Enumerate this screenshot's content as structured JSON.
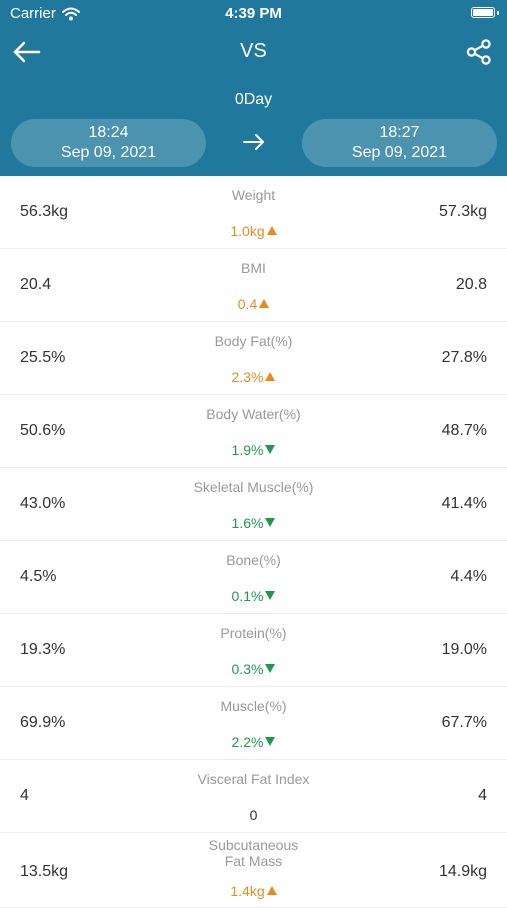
{
  "status_bar": {
    "carrier": "Carrier",
    "time": "4:39 PM",
    "wifi_icon": "wifi-icon",
    "battery_icon": "battery-icon"
  },
  "nav": {
    "title": "VS",
    "back_icon": "arrow-left-icon",
    "share_icon": "share-icon"
  },
  "comparison": {
    "days": "0Day",
    "left": {
      "time": "18:24",
      "date": "Sep 09, 2021"
    },
    "right": {
      "time": "18:27",
      "date": "Sep 09, 2021"
    },
    "arrow_icon": "arrow-right-icon"
  },
  "colors": {
    "header": "#20799d",
    "increase": "#ea8a1c",
    "decrease": "#1f9a4a"
  },
  "metrics": [
    {
      "label": "Weight",
      "left": "56.3kg",
      "right": "57.3kg",
      "delta": "1.0kg",
      "trend": "up"
    },
    {
      "label": "BMI",
      "left": "20.4",
      "right": "20.8",
      "delta": "0.4",
      "trend": "up"
    },
    {
      "label": "Body Fat(%)",
      "left": "25.5%",
      "right": "27.8%",
      "delta": "2.3%",
      "trend": "up"
    },
    {
      "label": "Body Water(%)",
      "left": "50.6%",
      "right": "48.7%",
      "delta": "1.9%",
      "trend": "down"
    },
    {
      "label": "Skeletal Muscle(%)",
      "left": "43.0%",
      "right": "41.4%",
      "delta": "1.6%",
      "trend": "down"
    },
    {
      "label": "Bone(%)",
      "left": "4.5%",
      "right": "4.4%",
      "delta": "0.1%",
      "trend": "down"
    },
    {
      "label": "Protein(%)",
      "left": "19.3%",
      "right": "19.0%",
      "delta": "0.3%",
      "trend": "down"
    },
    {
      "label": "Muscle(%)",
      "left": "69.9%",
      "right": "67.7%",
      "delta": "2.2%",
      "trend": "down"
    },
    {
      "label": "Visceral Fat Index",
      "left": "4",
      "right": "4",
      "delta": "0",
      "trend": "none"
    },
    {
      "label": "Subcutaneous\nFat Mass",
      "left": "13.5kg",
      "right": "14.9kg",
      "delta": "1.4kg",
      "trend": "up"
    }
  ]
}
